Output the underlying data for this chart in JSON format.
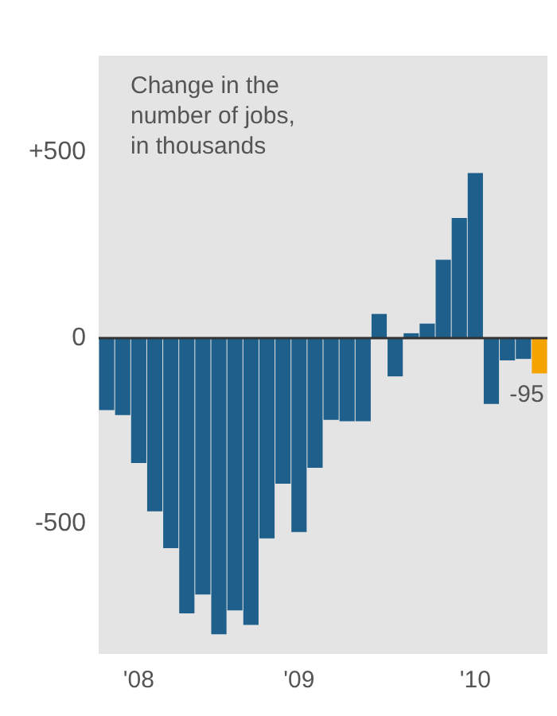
{
  "chart_data": {
    "type": "bar",
    "title": "Change in the number of jobs, in thousands",
    "categories": [
      null,
      null,
      "'08",
      null,
      null,
      null,
      null,
      null,
      null,
      null,
      null,
      null,
      "'09",
      null,
      null,
      null,
      null,
      null,
      null,
      null,
      null,
      null,
      null,
      "'10",
      null,
      null,
      null,
      null
    ],
    "values": [
      -194,
      -207,
      -336,
      -466,
      -565,
      -741,
      -690,
      -797,
      -733,
      -772,
      -539,
      -392,
      -522,
      -349,
      -220,
      -224,
      -224,
      65,
      -103,
      13,
      39,
      211,
      323,
      444,
      -177,
      -60,
      -56,
      -95
    ],
    "colors": [
      "#1f5f8b",
      "#1f5f8b",
      "#1f5f8b",
      "#1f5f8b",
      "#1f5f8b",
      "#1f5f8b",
      "#1f5f8b",
      "#1f5f8b",
      "#1f5f8b",
      "#1f5f8b",
      "#1f5f8b",
      "#1f5f8b",
      "#1f5f8b",
      "#1f5f8b",
      "#1f5f8b",
      "#1f5f8b",
      "#1f5f8b",
      "#1f5f8b",
      "#1f5f8b",
      "#1f5f8b",
      "#1f5f8b",
      "#1f5f8b",
      "#1f5f8b",
      "#1f5f8b",
      "#1f5f8b",
      "#1f5f8b",
      "#1f5f8b",
      "#f5a300"
    ],
    "value_labels": [
      null,
      null,
      null,
      null,
      null,
      null,
      null,
      null,
      null,
      null,
      null,
      null,
      null,
      null,
      null,
      null,
      null,
      null,
      null,
      null,
      null,
      null,
      null,
      null,
      null,
      null,
      null,
      "-95"
    ],
    "ylim": [
      -850,
      760
    ],
    "yticks": [
      {
        "value": 500,
        "label": "+500"
      },
      0,
      -500
    ],
    "legend": false
  }
}
